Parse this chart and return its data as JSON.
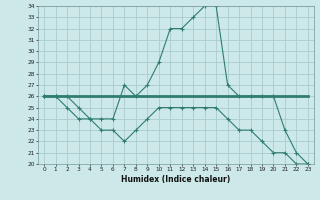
{
  "xlabel": "Humidex (Indice chaleur)",
  "x": [
    0,
    1,
    2,
    3,
    4,
    5,
    6,
    7,
    8,
    9,
    10,
    11,
    12,
    13,
    14,
    15,
    16,
    17,
    18,
    19,
    20,
    21,
    22,
    23
  ],
  "line1": [
    26,
    26,
    26,
    25,
    24,
    24,
    24,
    27,
    26,
    27,
    29,
    32,
    32,
    33,
    34,
    34,
    27,
    26,
    26,
    26,
    26,
    23,
    21,
    20
  ],
  "line2": [
    26,
    26,
    26,
    26,
    26,
    26,
    26,
    26,
    26,
    26,
    26,
    26,
    26,
    26,
    26,
    26,
    26,
    26,
    26,
    26,
    26,
    26,
    26,
    26
  ],
  "line3": [
    26,
    26,
    25,
    24,
    24,
    23,
    23,
    22,
    23,
    24,
    25,
    25,
    25,
    25,
    25,
    25,
    24,
    23,
    23,
    22,
    21,
    21,
    20,
    20
  ],
  "color": "#2e7d6e",
  "bg_color": "#cce8e8",
  "grid_color": "#aacccc",
  "ylim_min": 20,
  "ylim_max": 34,
  "yticks": [
    20,
    21,
    22,
    23,
    24,
    25,
    26,
    27,
    28,
    29,
    30,
    31,
    32,
    33,
    34
  ],
  "xticks": [
    0,
    1,
    2,
    3,
    4,
    5,
    6,
    7,
    8,
    9,
    10,
    11,
    12,
    13,
    14,
    15,
    16,
    17,
    18,
    19,
    20,
    21,
    22,
    23
  ]
}
